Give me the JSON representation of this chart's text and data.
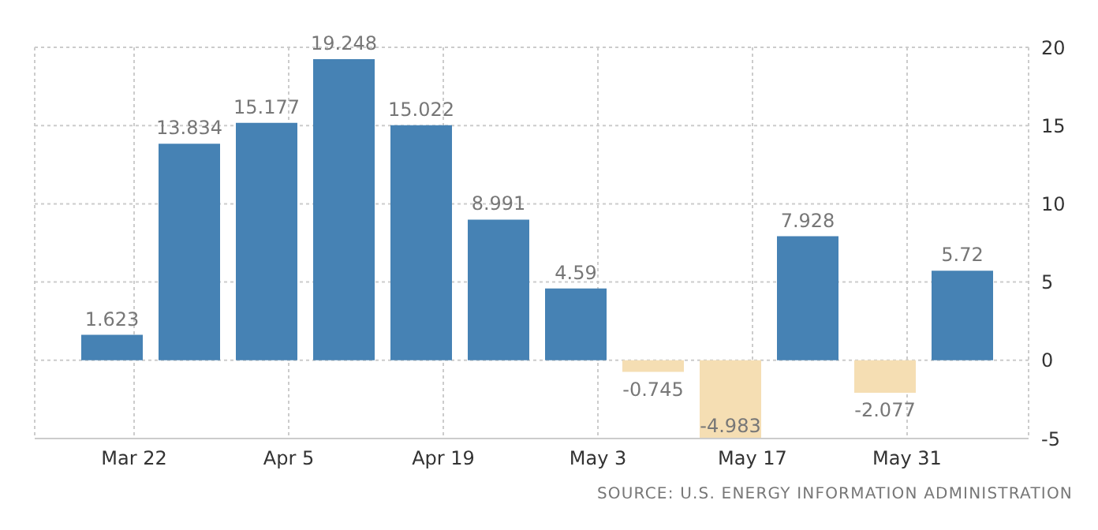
{
  "chart_data": {
    "type": "bar",
    "x": [
      "--03-20",
      "--03-27",
      "--04-03",
      "--04-10",
      "--04-17",
      "--04-24",
      "--05-01",
      "--05-08",
      "--05-15",
      "--05-22",
      "--05-29",
      "--06-05"
    ],
    "values": [
      1.623,
      13.834,
      15.177,
      19.248,
      15.022,
      8.991,
      4.59,
      -0.745,
      -4.983,
      7.928,
      -2.077,
      5.72
    ],
    "colors": [
      "#4682b4",
      "#4682b4",
      "#4682b4",
      "#4682b4",
      "#4682b4",
      "#4682b4",
      "#4682b4",
      "#f5deb3",
      "#f5deb3",
      "#4682b4",
      "#f5deb3",
      "#4682b4"
    ],
    "data_labels": true,
    "xlim": [
      "--03-13",
      "--06-11"
    ],
    "xticks": [
      {
        "value": "--03-22",
        "label": "Mar 22"
      },
      {
        "value": "--04-05",
        "label": "Apr 5"
      },
      {
        "value": "--04-19",
        "label": "Apr 19"
      },
      {
        "value": "--05-03",
        "label": "May 3"
      },
      {
        "value": "--05-17",
        "label": "May 17"
      },
      {
        "value": "--05-31",
        "label": "May 31"
      }
    ],
    "ylim": [
      -5,
      20
    ],
    "yticks": [
      -5,
      0,
      5,
      10,
      15,
      20
    ],
    "grid": true,
    "annotations": [
      "SOURCE: U.S. ENERGY INFORMATION ADMINISTRATION"
    ]
  }
}
